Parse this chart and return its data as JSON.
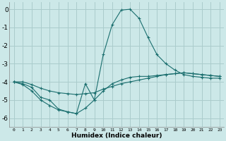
{
  "xlabel": "Humidex (Indice chaleur)",
  "background_color": "#cce8e8",
  "grid_color": "#aacccc",
  "line_color": "#1a6e6e",
  "x_ticks": [
    0,
    1,
    2,
    3,
    4,
    5,
    6,
    7,
    8,
    9,
    10,
    11,
    12,
    13,
    14,
    15,
    16,
    17,
    18,
    19,
    20,
    21,
    22,
    23
  ],
  "ylim": [
    -6.5,
    0.4
  ],
  "yticks": [
    0,
    -1,
    -2,
    -3,
    -4,
    -5,
    -6
  ],
  "line1_x": [
    0,
    1,
    2,
    3,
    4,
    5,
    6,
    7,
    8,
    9,
    10,
    11,
    12,
    13,
    14,
    15,
    16,
    17,
    18,
    19,
    20,
    21,
    22,
    23
  ],
  "line1_y": [
    -4.0,
    -4.1,
    -4.3,
    -4.85,
    -5.0,
    -5.5,
    -5.65,
    -5.75,
    -4.1,
    -5.0,
    -2.5,
    -0.85,
    -0.05,
    0.0,
    -0.5,
    -1.55,
    -2.5,
    -3.0,
    -3.35,
    -3.6,
    -3.7,
    -3.75,
    -3.8,
    -3.8
  ],
  "line2_x": [
    0,
    1,
    2,
    3,
    4,
    5,
    6,
    7,
    8,
    9,
    10,
    11,
    12,
    13,
    14,
    15,
    16,
    17,
    18,
    19,
    20,
    21,
    22,
    23
  ],
  "line2_y": [
    -4.0,
    -4.0,
    -4.15,
    -4.35,
    -4.5,
    -4.6,
    -4.65,
    -4.7,
    -4.65,
    -4.6,
    -4.4,
    -4.25,
    -4.1,
    -4.0,
    -3.9,
    -3.8,
    -3.7,
    -3.6,
    -3.55,
    -3.5,
    -3.55,
    -3.6,
    -3.65,
    -3.7
  ],
  "line3_x": [
    0,
    1,
    2,
    3,
    4,
    5,
    6,
    7,
    8,
    9,
    10,
    11,
    12,
    13,
    14,
    15,
    16,
    17,
    18,
    19,
    20,
    21,
    22,
    23
  ],
  "line3_y": [
    -4.0,
    -4.15,
    -4.5,
    -5.0,
    -5.3,
    -5.55,
    -5.65,
    -5.75,
    -5.45,
    -5.0,
    -4.5,
    -4.1,
    -3.9,
    -3.75,
    -3.7,
    -3.7,
    -3.65,
    -3.6,
    -3.55,
    -3.5,
    -3.55,
    -3.6,
    -3.65,
    -3.7
  ]
}
